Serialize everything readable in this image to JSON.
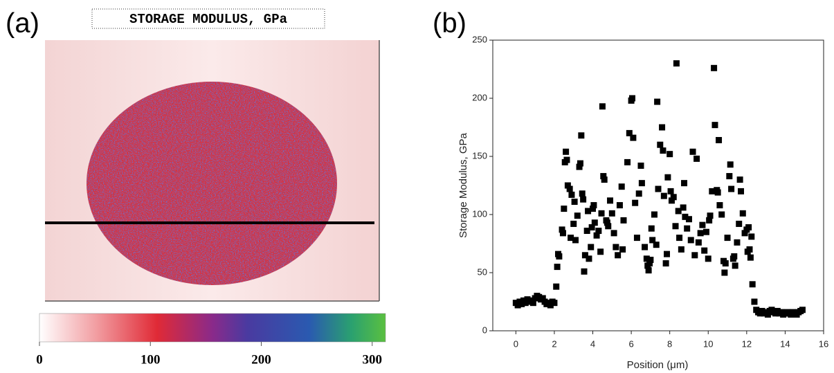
{
  "chart_data": [
    {
      "type": "colormap",
      "panel": "(a)",
      "title": "STORAGE MODULUS, GPa",
      "clim": [
        0,
        312
      ],
      "cticks": [
        0,
        100,
        200,
        300
      ]
    },
    {
      "type": "scatter",
      "panel": "(b)",
      "xlabel": "Position (μm)",
      "ylabel": "Storage Modulus, GPa",
      "color": "#000000",
      "xlim": [
        -1.2,
        16
      ],
      "ylim": [
        0,
        250
      ],
      "xticks": [
        0,
        2,
        4,
        6,
        8,
        10,
        12,
        14,
        16
      ],
      "yticks": [
        0,
        50,
        100,
        150,
        200,
        250
      ],
      "x": [
        0,
        0.1,
        0.2,
        0.3,
        0.4,
        0.5,
        0.6,
        0.7,
        0.8,
        0.9,
        1.0,
        1.1,
        1.2,
        1.3,
        1.4,
        1.5,
        1.6,
        1.7,
        1.8,
        1.9,
        2.0,
        2.1,
        2.15,
        2.2,
        2.25,
        2.4,
        2.45,
        2.5,
        2.55,
        2.6,
        2.65,
        2.7,
        2.8,
        2.85,
        2.9,
        3.0,
        3.05,
        3.1,
        3.2,
        3.3,
        3.35,
        3.4,
        3.45,
        3.5,
        3.55,
        3.6,
        3.7,
        3.75,
        3.8,
        3.9,
        3.95,
        4.0,
        4.05,
        4.1,
        4.2,
        4.3,
        4.4,
        4.45,
        4.5,
        4.55,
        4.6,
        4.7,
        4.75,
        4.8,
        4.9,
        5.0,
        5.1,
        5.2,
        5.3,
        5.4,
        5.5,
        5.55,
        5.6,
        5.8,
        5.9,
        6.0,
        6.05,
        6.1,
        6.2,
        6.3,
        6.4,
        6.5,
        6.55,
        6.7,
        6.8,
        6.85,
        6.9,
        6.95,
        7.0,
        7.05,
        7.1,
        7.2,
        7.3,
        7.35,
        7.4,
        7.5,
        7.6,
        7.65,
        7.7,
        7.8,
        7.85,
        7.9,
        8.0,
        8.05,
        8.1,
        8.2,
        8.3,
        8.35,
        8.45,
        8.5,
        8.6,
        8.7,
        8.75,
        8.8,
        8.9,
        9.0,
        9.1,
        9.2,
        9.3,
        9.4,
        9.5,
        9.6,
        9.7,
        9.8,
        9.9,
        10.0,
        10.05,
        10.1,
        10.2,
        10.3,
        10.35,
        10.45,
        10.5,
        10.55,
        10.6,
        10.7,
        10.8,
        10.85,
        10.9,
        11.0,
        11.1,
        11.15,
        11.2,
        11.3,
        11.35,
        11.4,
        11.5,
        11.6,
        11.65,
        11.7,
        11.8,
        11.9,
        12.0,
        12.05,
        12.1,
        12.15,
        12.2,
        12.25,
        12.3,
        12.4,
        12.5,
        12.6,
        12.7,
        12.8,
        12.9,
        13.0,
        13.1,
        13.2,
        13.3,
        13.4,
        13.5,
        13.6,
        13.7,
        13.8,
        13.9,
        14.0,
        14.1,
        14.2,
        14.3,
        14.4,
        14.5,
        14.6,
        14.7,
        14.8,
        14.9
      ],
      "y": [
        24,
        22,
        25,
        23,
        26,
        24,
        27,
        25,
        26,
        24,
        28,
        30,
        29,
        27,
        28,
        25,
        23,
        24,
        22,
        25,
        24,
        38,
        55,
        66,
        64,
        87,
        84,
        105,
        145,
        154,
        147,
        125,
        122,
        80,
        117,
        92,
        111,
        78,
        99,
        141,
        144,
        168,
        118,
        113,
        51,
        65,
        86,
        103,
        62,
        72,
        89,
        105,
        108,
        93,
        82,
        86,
        68,
        101,
        193,
        133,
        130,
        95,
        93,
        90,
        112,
        101,
        84,
        72,
        65,
        108,
        124,
        70,
        95,
        145,
        170,
        198,
        200,
        166,
        110,
        80,
        118,
        142,
        127,
        72,
        62,
        56,
        52,
        58,
        61,
        88,
        78,
        100,
        74,
        197,
        122,
        160,
        175,
        155,
        116,
        58,
        66,
        132,
        152,
        120,
        112,
        115,
        90,
        230,
        103,
        80,
        70,
        106,
        127,
        98,
        88,
        96,
        78,
        154,
        65,
        148,
        76,
        84,
        91,
        69,
        85,
        62,
        95,
        99,
        120,
        226,
        177,
        121,
        119,
        164,
        108,
        100,
        60,
        50,
        58,
        80,
        133,
        143,
        122,
        62,
        64,
        56,
        76,
        92,
        130,
        120,
        101,
        84,
        87,
        68,
        89,
        70,
        63,
        81,
        40,
        25,
        18,
        16,
        15,
        17,
        15,
        16,
        14,
        17,
        18,
        16,
        15,
        17,
        15,
        16,
        14,
        15,
        16,
        15,
        14,
        16,
        15,
        14,
        16,
        17,
        18
      ]
    }
  ]
}
